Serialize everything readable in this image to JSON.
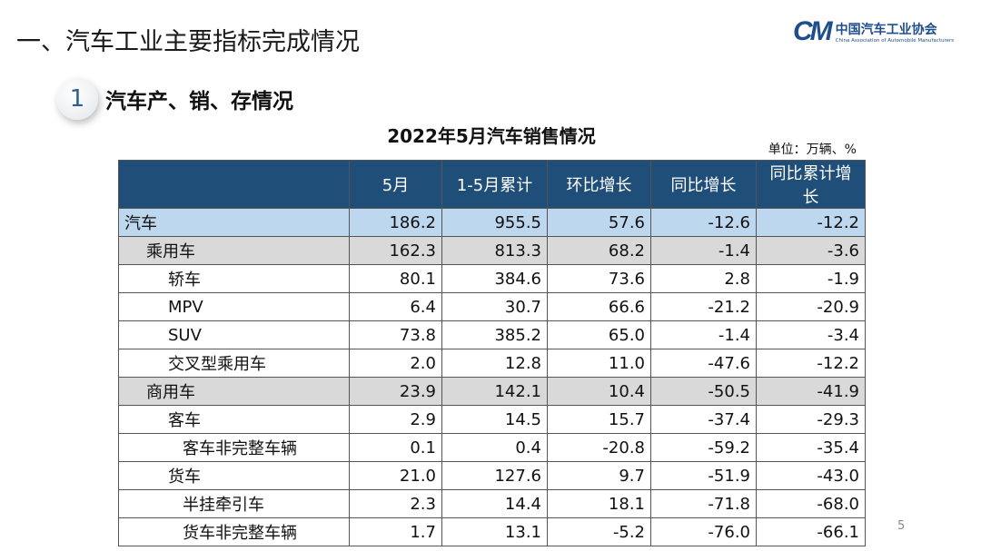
{
  "title": "一、汽车工业主要指标完成情况",
  "logo": {
    "mark": "CM",
    "cn": "中国汽车工业协会",
    "en": "China Association of Automobile Manufacturers"
  },
  "section": {
    "number": "1",
    "label": "汽车产、销、存情况"
  },
  "table": {
    "title": "2022年5月汽车销售情况",
    "unit": "单位：万辆、%",
    "headers": [
      "",
      "5月",
      "1-5月累计",
      "环比增长",
      "同比增长",
      "同比累计增长"
    ],
    "rows": [
      {
        "name": "汽车",
        "level": 0,
        "values": [
          "186.2",
          "955.5",
          "57.6",
          "-12.6",
          "-12.2"
        ]
      },
      {
        "name": "乘用车",
        "level": 1,
        "values": [
          "162.3",
          "813.3",
          "68.2",
          "-1.4",
          "-3.6"
        ]
      },
      {
        "name": "轿车",
        "level": 2,
        "values": [
          "80.1",
          "384.6",
          "73.6",
          "2.8",
          "-1.9"
        ]
      },
      {
        "name": "MPV",
        "level": 2,
        "values": [
          "6.4",
          "30.7",
          "66.6",
          "-21.2",
          "-20.9"
        ]
      },
      {
        "name": "SUV",
        "level": 2,
        "values": [
          "73.8",
          "385.2",
          "65.0",
          "-1.4",
          "-3.4"
        ]
      },
      {
        "name": "交叉型乘用车",
        "level": 2,
        "values": [
          "2.0",
          "12.8",
          "11.0",
          "-47.6",
          "-12.2"
        ]
      },
      {
        "name": "商用车",
        "level": 1,
        "values": [
          "23.9",
          "142.1",
          "10.4",
          "-50.5",
          "-41.9"
        ]
      },
      {
        "name": "客车",
        "level": 2,
        "values": [
          "2.9",
          "14.5",
          "15.7",
          "-37.4",
          "-29.3"
        ]
      },
      {
        "name": "客车非完整车辆",
        "level": 3,
        "values": [
          "0.1",
          "0.4",
          "-20.8",
          "-59.2",
          "-35.4"
        ]
      },
      {
        "name": "货车",
        "level": 2,
        "values": [
          "21.0",
          "127.6",
          "9.7",
          "-51.9",
          "-43.0"
        ]
      },
      {
        "name": "半挂牵引车",
        "level": 3,
        "values": [
          "2.3",
          "14.4",
          "18.1",
          "-71.8",
          "-68.0"
        ]
      },
      {
        "name": "货车非完整车辆",
        "level": 3,
        "values": [
          "1.7",
          "13.1",
          "-5.2",
          "-76.0",
          "-66.1"
        ]
      }
    ]
  },
  "page_number": "5"
}
